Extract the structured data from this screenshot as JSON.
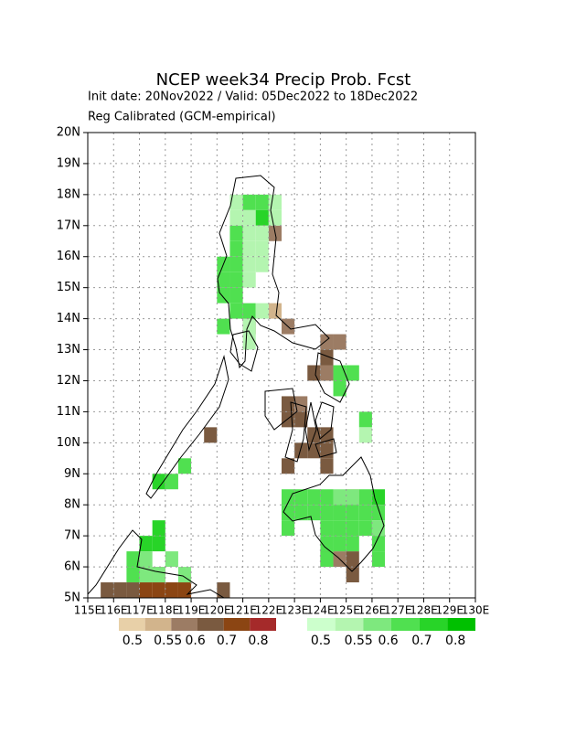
{
  "chart_data": {
    "type": "gridmap",
    "title": "NCEP week34 Precip Prob. Fcst",
    "subtitle": "Init date: 20Nov2022 / Valid: 05Dec2022 to 18Dec2022",
    "note": "Reg Calibrated (GCM-empirical)",
    "xlim": [
      115,
      130
    ],
    "ylim": [
      5,
      20
    ],
    "xticks": [
      {
        "value": 115,
        "label": "115E"
      },
      {
        "value": 116,
        "label": "116E"
      },
      {
        "value": 117,
        "label": "117E"
      },
      {
        "value": 118,
        "label": "118E"
      },
      {
        "value": 119,
        "label": "119E"
      },
      {
        "value": 120,
        "label": "120E"
      },
      {
        "value": 121,
        "label": "121E"
      },
      {
        "value": 122,
        "label": "122E"
      },
      {
        "value": 123,
        "label": "123E"
      },
      {
        "value": 124,
        "label": "124E"
      },
      {
        "value": 125,
        "label": "125E"
      },
      {
        "value": 126,
        "label": "126E"
      },
      {
        "value": 127,
        "label": "127E"
      },
      {
        "value": 128,
        "label": "128E"
      },
      {
        "value": 129,
        "label": "129E"
      },
      {
        "value": 130,
        "label": "130E"
      }
    ],
    "yticks": [
      {
        "value": 5,
        "label": "5N"
      },
      {
        "value": 6,
        "label": "6N"
      },
      {
        "value": 7,
        "label": "7N"
      },
      {
        "value": 8,
        "label": "8N"
      },
      {
        "value": 9,
        "label": "9N"
      },
      {
        "value": 10,
        "label": "10N"
      },
      {
        "value": 11,
        "label": "11N"
      },
      {
        "value": 12,
        "label": "12N"
      },
      {
        "value": 13,
        "label": "13N"
      },
      {
        "value": 14,
        "label": "14N"
      },
      {
        "value": 15,
        "label": "15N"
      },
      {
        "value": 16,
        "label": "16N"
      },
      {
        "value": 17,
        "label": "17N"
      },
      {
        "value": 18,
        "label": "18N"
      },
      {
        "value": 19,
        "label": "19N"
      },
      {
        "value": 20,
        "label": "20N"
      }
    ],
    "grid": true,
    "colorbars": [
      {
        "colors": [
          "#e8d0a8",
          "#d2b48c",
          "#9c7c64",
          "#7a5a40",
          "#8b4513",
          "#a52a2a"
        ],
        "ticks": [
          0.5,
          0.55,
          0.6,
          0.7,
          0.8
        ]
      },
      {
        "colors": [
          "#ccffcc",
          "#b4f5b0",
          "#7ee87e",
          "#50e050",
          "#28d428",
          "#00c000"
        ],
        "ticks": [
          0.5,
          0.55,
          0.6,
          0.7,
          0.8
        ]
      }
    ],
    "below_cells": {
      "lon": [
        122,
        122,
        122.5,
        121,
        124,
        124.5,
        124,
        123.5,
        124,
        122.5,
        123,
        122.5,
        123,
        119.5,
        123.5,
        124,
        123,
        123.5,
        124,
        122.5,
        124,
        125,
        124,
        124.5,
        125,
        125,
        117.5,
        115.5,
        116,
        116.5,
        117,
        117.5,
        118,
        118.5,
        120
      ],
      "lat": [
        16.5,
        14,
        13.5,
        13.5,
        13,
        13,
        12.5,
        12,
        12,
        11,
        11,
        10.5,
        10.5,
        10,
        10,
        10,
        9.5,
        9.5,
        9.5,
        9,
        9,
        8,
        6,
        6,
        6,
        5.5,
        5.5,
        5,
        5,
        5,
        5,
        5,
        5,
        5,
        5
      ],
      "values": [
        0.57,
        0.52,
        0.57,
        0.57,
        0.57,
        0.57,
        0.65,
        0.65,
        0.57,
        0.65,
        0.57,
        0.65,
        0.65,
        0.65,
        0.65,
        0.65,
        0.65,
        0.65,
        0.65,
        0.65,
        0.65,
        0.52,
        0.65,
        0.57,
        0.65,
        0.65,
        0.57,
        0.65,
        0.65,
        0.65,
        0.75,
        0.75,
        0.75,
        0.75,
        0.65
      ]
    },
    "above_cells": {
      "lon": [
        120.5,
        121,
        121.5,
        122,
        120.5,
        121,
        121.5,
        122,
        120.5,
        121,
        121.5,
        120.5,
        121,
        121.5,
        120,
        120.5,
        121,
        121.5,
        120,
        120.5,
        121,
        120,
        120.5,
        120.5,
        121,
        121.5,
        120,
        121,
        121,
        124.5,
        125,
        124.5,
        125.5,
        125.5,
        122.5,
        123,
        123.5,
        124,
        124.5,
        125,
        125.5,
        126,
        122.5,
        123,
        123.5,
        124,
        124.5,
        125,
        125.5,
        126,
        122.5,
        124,
        124.5,
        125,
        125.5,
        126,
        124,
        124.5,
        125,
        126,
        124,
        126,
        118.5,
        117.5,
        118,
        117.5,
        117,
        117.5,
        116.5,
        117,
        118,
        116.5,
        117,
        117.5,
        118.5
      ],
      "lat": [
        17.5,
        17.5,
        17.5,
        17.5,
        17,
        17,
        17,
        17,
        16.5,
        16.5,
        16.5,
        16,
        16,
        16,
        15.5,
        15.5,
        15.5,
        15.5,
        15,
        15,
        15,
        14.5,
        14.5,
        14,
        14,
        14,
        13.5,
        13.5,
        13,
        12,
        12,
        11.5,
        10.5,
        10,
        8,
        8,
        8,
        8,
        8,
        8,
        8,
        8,
        7.5,
        7.5,
        7.5,
        7.5,
        7.5,
        7.5,
        7.5,
        7.5,
        7,
        7,
        7,
        7,
        7,
        7,
        6.5,
        6.5,
        6.5,
        6.5,
        6,
        6,
        9,
        8.5,
        8.5,
        7,
        6.5,
        6.5,
        6,
        6,
        6,
        5.5,
        5.5,
        5.5,
        5.5
      ],
      "values": [
        0.52,
        0.65,
        0.65,
        0.52,
        0.52,
        0.52,
        0.75,
        0.52,
        0.65,
        0.52,
        0.52,
        0.65,
        0.52,
        0.52,
        0.65,
        0.65,
        0.52,
        0.52,
        0.65,
        0.65,
        0.52,
        0.65,
        0.65,
        0.65,
        0.65,
        0.52,
        0.65,
        0.52,
        0.52,
        0.65,
        0.65,
        0.65,
        0.65,
        0.52,
        0.65,
        0.65,
        0.65,
        0.65,
        0.57,
        0.57,
        0.65,
        0.75,
        0.65,
        0.65,
        0.65,
        0.65,
        0.65,
        0.65,
        0.65,
        0.65,
        0.65,
        0.65,
        0.65,
        0.65,
        0.65,
        0.57,
        0.65,
        0.65,
        0.65,
        0.65,
        0.65,
        0.65,
        0.65,
        0.75,
        0.65,
        0.75,
        0.75,
        0.75,
        0.65,
        0.57,
        0.57,
        0.65,
        0.57,
        0.57,
        0.57
      ]
    }
  }
}
